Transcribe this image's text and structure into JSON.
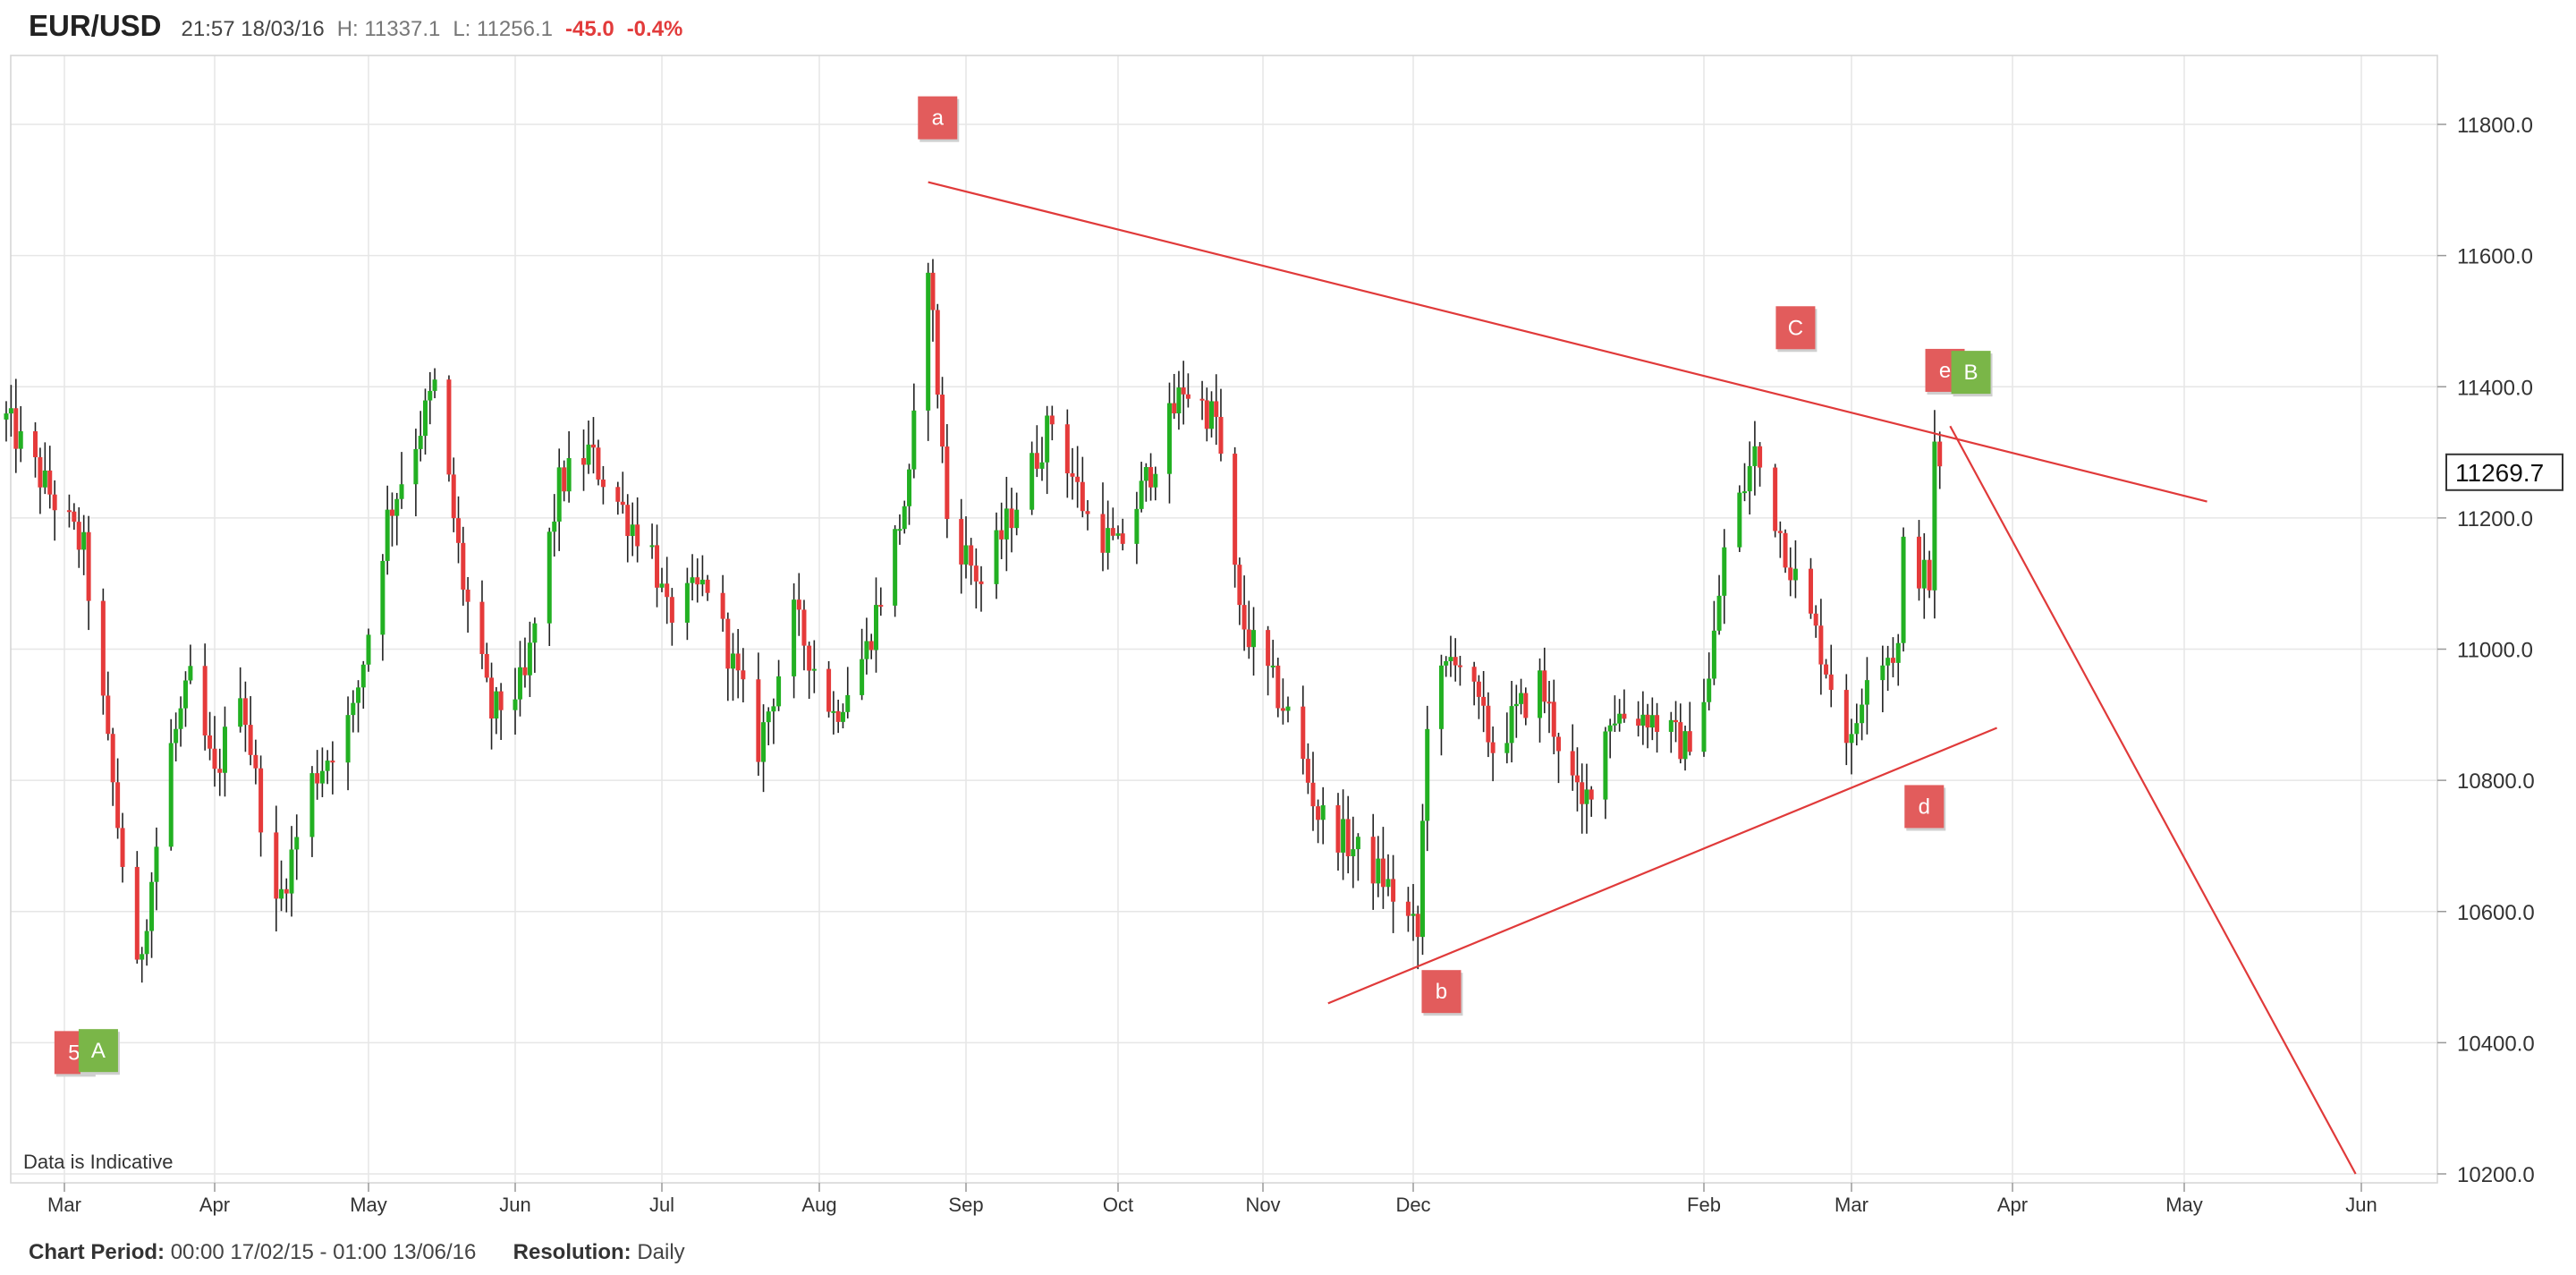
{
  "header": {
    "symbol": "EUR/USD",
    "datetime": "21:57 18/03/16",
    "high": "H: 11337.1",
    "low": "L: 11256.1",
    "change": "-45.0",
    "change_pct": "-0.4%"
  },
  "footer": {
    "period_label": "Chart Period:",
    "period_value": "00:00 17/02/15 - 01:00 13/06/16",
    "resolution_label": "Resolution:",
    "resolution_value": "Daily"
  },
  "chart_data": {
    "type": "candlestick",
    "indicative_note": "Data is Indicative",
    "current_price": "11269.7",
    "ylim": [
      10200,
      11900
    ],
    "yticks": [
      "11800.0",
      "11600.0",
      "11400.0",
      "11200.0",
      "11000.0",
      "10800.0",
      "10600.0",
      "10400.0",
      "10200.0"
    ],
    "yticks_values": [
      11800,
      11600,
      11400,
      11200,
      11000,
      10800,
      10600,
      10400,
      10200
    ],
    "xlim": [
      "2015-02-17",
      "2016-06-13"
    ],
    "xticks": [
      {
        "label": "Mar",
        "date": "2015-03-01"
      },
      {
        "label": "Apr",
        "date": "2015-04-01"
      },
      {
        "label": "May",
        "date": "2015-05-01"
      },
      {
        "label": "Jun",
        "date": "2015-06-01"
      },
      {
        "label": "Jul",
        "date": "2015-07-01"
      },
      {
        "label": "Aug",
        "date": "2015-08-01"
      },
      {
        "label": "Sep",
        "date": "2015-09-01"
      },
      {
        "label": "Oct",
        "date": "2015-10-01"
      },
      {
        "label": "Nov",
        "date": "2015-11-01"
      },
      {
        "label": "Dec",
        "date": "2015-12-01"
      },
      {
        "label": "Feb",
        "date": "2016-02-01"
      },
      {
        "label": "Mar",
        "date": "2016-03-01"
      },
      {
        "label": "Apr",
        "date": "2016-04-01"
      },
      {
        "label": "May",
        "date": "2016-05-01"
      },
      {
        "label": "Jun",
        "date": "2016-06-01"
      }
    ],
    "grid": true,
    "colors": {
      "up": "#22b022",
      "down": "#e53a3a",
      "wick": "#222222",
      "trendline": "#e03a3a",
      "label_red": "#e25c5c",
      "label_green": "#7ab648",
      "grid": "#e6e6e6"
    },
    "anchors": [
      [
        "2015-02-17",
        11350
      ],
      [
        "2015-03-05",
        11150
      ],
      [
        "2015-03-10",
        10850
      ],
      [
        "2015-03-16",
        10500
      ],
      [
        "2015-03-23",
        10850
      ],
      [
        "2015-03-27",
        10950
      ],
      [
        "2015-04-01",
        10800
      ],
      [
        "2015-04-06",
        10950
      ],
      [
        "2015-04-13",
        10600
      ],
      [
        "2015-04-20",
        10800
      ],
      [
        "2015-04-28",
        10900
      ],
      [
        "2015-05-05",
        11200
      ],
      [
        "2015-05-15",
        11400
      ],
      [
        "2015-05-21",
        11100
      ],
      [
        "2015-05-27",
        10900
      ],
      [
        "2015-06-03",
        10950
      ],
      [
        "2015-06-10",
        11250
      ],
      [
        "2015-06-16",
        11300
      ],
      [
        "2015-06-24",
        11200
      ],
      [
        "2015-06-29",
        11150
      ],
      [
        "2015-07-02",
        11050
      ],
      [
        "2015-07-10",
        11100
      ],
      [
        "2015-07-20",
        10850
      ],
      [
        "2015-07-27",
        11050
      ],
      [
        "2015-08-04",
        10900
      ],
      [
        "2015-08-11",
        11000
      ],
      [
        "2015-08-20",
        11250
      ],
      [
        "2015-08-24",
        11600
      ],
      [
        "2015-08-28",
        11200
      ],
      [
        "2015-09-04",
        11100
      ],
      [
        "2015-09-18",
        11350
      ],
      [
        "2015-09-25",
        11200
      ],
      [
        "2015-10-01",
        11150
      ],
      [
        "2015-10-15",
        11400
      ],
      [
        "2015-10-22",
        11350
      ],
      [
        "2015-10-27",
        11050
      ],
      [
        "2015-11-06",
        10900
      ],
      [
        "2015-11-12",
        10750
      ],
      [
        "2015-11-25",
        10650
      ],
      [
        "2015-12-02",
        10560
      ],
      [
        "2015-12-04",
        10900
      ],
      [
        "2015-12-10",
        11000
      ],
      [
        "2015-12-18",
        10850
      ],
      [
        "2015-12-28",
        10950
      ],
      [
        "2016-01-06",
        10750
      ],
      [
        "2016-01-12",
        10900
      ],
      [
        "2016-01-20",
        10900
      ],
      [
        "2016-01-28",
        10850
      ],
      [
        "2016-02-02",
        10950
      ],
      [
        "2016-02-05",
        11150
      ],
      [
        "2016-02-11",
        11300
      ],
      [
        "2016-02-18",
        11130
      ],
      [
        "2016-02-24",
        11000
      ],
      [
        "2016-03-01",
        10850
      ],
      [
        "2016-03-04",
        10980
      ],
      [
        "2016-03-10",
        11000
      ],
      [
        "2016-03-11",
        11150
      ],
      [
        "2016-03-16",
        11100
      ],
      [
        "2016-03-17",
        11300
      ],
      [
        "2016-03-18",
        11270
      ]
    ],
    "trendlines": [
      {
        "from": [
          "2015-08-24",
          11712
        ],
        "to": [
          "2016-05-05",
          11225
        ]
      },
      {
        "from": [
          "2015-11-14",
          10460
        ],
        "to": [
          "2016-03-29",
          10880
        ]
      },
      {
        "from": [
          "2016-03-20",
          11340
        ],
        "to": [
          "2016-05-31",
          10200
        ]
      }
    ],
    "wave_labels": [
      {
        "text": "a",
        "date": "2015-08-26",
        "price": 11810,
        "color": "red"
      },
      {
        "text": "C",
        "date": "2016-02-19",
        "price": 11490,
        "color": "red"
      },
      {
        "text": "e",
        "date": "2016-03-19",
        "price": 11425,
        "color": "red"
      },
      {
        "text": "B",
        "date": "2016-03-24",
        "price": 11422,
        "color": "green"
      },
      {
        "text": "d",
        "date": "2016-03-15",
        "price": 10760,
        "color": "red"
      },
      {
        "text": "b",
        "date": "2015-12-07",
        "price": 10478,
        "color": "red"
      },
      {
        "text": "5",
        "date": "2015-03-03",
        "price": 10385,
        "color": "red"
      },
      {
        "text": "A",
        "date": "2015-03-08",
        "price": 10388,
        "color": "green"
      }
    ]
  }
}
